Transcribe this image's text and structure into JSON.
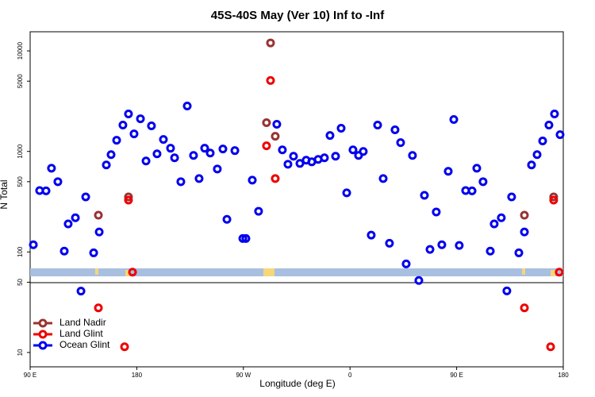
{
  "chart_data": {
    "type": "scatter",
    "title": "45S-40S May (Ver 10)   Inf to -Inf",
    "x_label": "Longitude (deg E)",
    "y_label": "N Total",
    "log_y": true,
    "legend": "lower left",
    "xlim": [
      90,
      540
    ],
    "ylim": [
      7.2,
      15500
    ],
    "xticks": [
      {
        "value": 90,
        "label": "90 E"
      },
      180,
      {
        "value": 270,
        "label": "90 W"
      },
      {
        "value": 360,
        "label": "0"
      },
      {
        "value": 450,
        "label": "90 E"
      },
      {
        "value": 540,
        "label": "180"
      }
    ],
    "yticks": [
      10,
      50,
      100,
      500,
      1000,
      5000,
      10000
    ],
    "series": [
      {
        "name": "Land Nadir",
        "color": "#993333",
        "x": [
          292.9,
          289.5,
          296.9,
          173,
          147.6,
          531.9,
          507.2
        ],
        "values": [
          12000,
          1931,
          1416,
          353,
          232,
          353,
          232
        ]
      },
      {
        "name": "Land Glint",
        "color": "#ee0000",
        "x": [
          292.9,
          289.5,
          296.9,
          173,
          176.4,
          147.6,
          169.7,
          531.9,
          536.6,
          507.2,
          529.3
        ],
        "values": [
          5080,
          1137,
          537,
          328,
          63,
          27.8,
          11.4,
          328,
          63,
          27.8,
          11.4
        ]
      },
      {
        "name": "Ocean Glint",
        "color": "#0000ee",
        "x": [
          92.7,
          98,
          103.4,
          108,
          113.4,
          118.8,
          122.1,
          128.2,
          132.9,
          136.9,
          143.6,
          148.3,
          154.3,
          158.3,
          163,
          168.3,
          173,
          177.7,
          183.1,
          187.8,
          192.4,
          197.1,
          202.5,
          208.5,
          211.9,
          217.2,
          222.6,
          227.9,
          232.6,
          237.3,
          242,
          248,
          252.7,
          256.1,
          262.8,
          269.5,
          272.1,
          277.5,
          282.8,
          298.2,
          302.9,
          307.6,
          312.3,
          317.7,
          323,
          327.7,
          333.1,
          338.4,
          343.1,
          347.8,
          352.5,
          357.2,
          362.5,
          367.2,
          371.2,
          377.9,
          383.3,
          388,
          393.3,
          398,
          402.7,
          407.4,
          412.7,
          418.1,
          422.8,
          427.5,
          432.8,
          437.5,
          442.9,
          447.6,
          452.2,
          457.6,
          463,
          467,
          472.3,
          478.4,
          481.7,
          487.7,
          492.4,
          496.4,
          502.5,
          507.2,
          513.2,
          517.9,
          522.6,
          527.9,
          532.6,
          537.3
        ],
        "values": [
          118,
          408,
          405,
          681,
          500,
          102,
          190,
          219,
          40.8,
          353,
          98,
          158,
          733,
          929,
          1292,
          1828,
          2361,
          1496,
          2113,
          803,
          1795,
          947,
          1316,
          1076,
          864,
          500,
          2832,
          912,
          537,
          1076,
          964,
          669,
          1057,
          211,
          1019,
          136,
          136,
          518,
          254,
          1862,
          1037,
          746,
          896,
          760,
          818,
          788,
          833,
          864,
          1442,
          896,
          1700,
          387,
          1037,
          912,
          1000,
          147,
          1828,
          537,
          122,
          1640,
          1223,
          76,
          912,
          52,
          366,
          106,
          250,
          118,
          634,
          2077,
          116,
          408,
          405,
          681,
          500,
          102,
          190,
          219,
          41,
          353,
          98,
          158,
          733,
          929,
          1271,
          1828,
          2361,
          1468
        ]
      }
    ]
  }
}
